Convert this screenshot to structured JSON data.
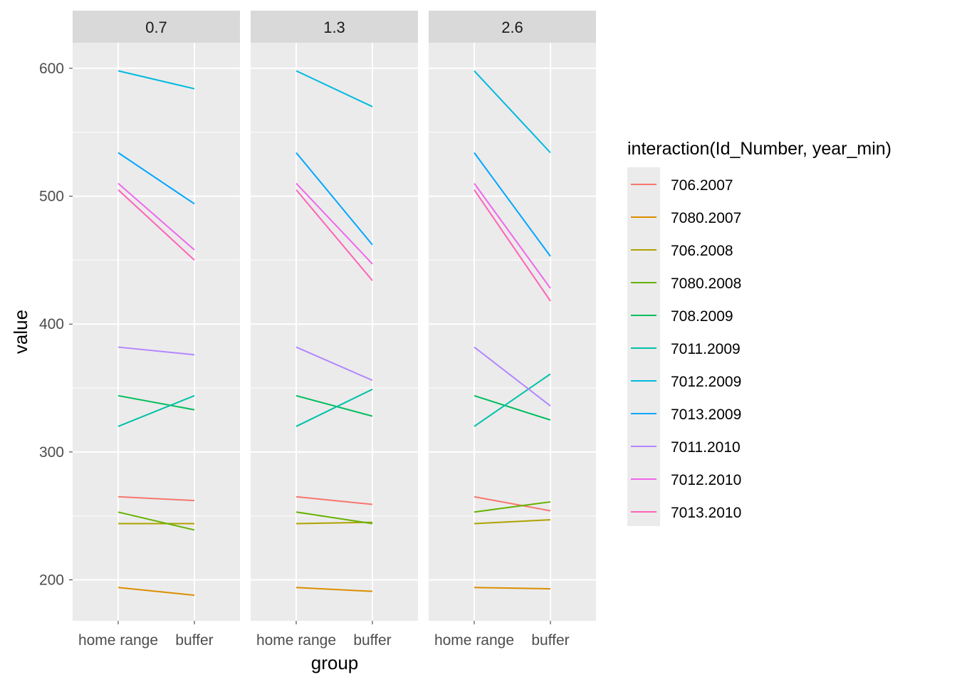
{
  "chart_data": {
    "type": "line",
    "facet_variable_values": [
      "0.7",
      "1.3",
      "2.6"
    ],
    "categories": [
      "home range",
      "buffer"
    ],
    "xlabel": "group",
    "ylabel": "value",
    "ylim": [
      168,
      620
    ],
    "y_ticks": [
      200,
      300,
      400,
      500,
      600
    ],
    "grid": true,
    "legend": {
      "title": "interaction(Id_Number, year_min)",
      "position": "right"
    },
    "series": [
      {
        "name": "706.2007",
        "color": "#F8766D",
        "facets": [
          [
            265,
            262
          ],
          [
            265,
            259
          ],
          [
            265,
            254
          ]
        ]
      },
      {
        "name": "7080.2007",
        "color": "#DB8E00",
        "facets": [
          [
            194,
            188
          ],
          [
            194,
            191
          ],
          [
            194,
            193
          ]
        ]
      },
      {
        "name": "706.2008",
        "color": "#AEA200",
        "facets": [
          [
            244,
            244
          ],
          [
            244,
            245
          ],
          [
            244,
            247
          ]
        ]
      },
      {
        "name": "7080.2008",
        "color": "#64B200",
        "facets": [
          [
            253,
            239
          ],
          [
            253,
            244
          ],
          [
            253,
            261
          ]
        ]
      },
      {
        "name": "708.2009",
        "color": "#00BD5C",
        "facets": [
          [
            344,
            333
          ],
          [
            344,
            328
          ],
          [
            344,
            325
          ]
        ]
      },
      {
        "name": "7011.2009",
        "color": "#00C1A7",
        "facets": [
          [
            320,
            344
          ],
          [
            320,
            349
          ],
          [
            320,
            361
          ]
        ]
      },
      {
        "name": "7012.2009",
        "color": "#00BADE",
        "facets": [
          [
            598,
            584
          ],
          [
            598,
            570
          ],
          [
            598,
            534
          ]
        ]
      },
      {
        "name": "7013.2009",
        "color": "#00A6FF",
        "facets": [
          [
            534,
            494
          ],
          [
            534,
            462
          ],
          [
            534,
            453
          ]
        ]
      },
      {
        "name": "7011.2010",
        "color": "#B385FF",
        "facets": [
          [
            382,
            376
          ],
          [
            382,
            356
          ],
          [
            382,
            336
          ]
        ]
      },
      {
        "name": "7012.2010",
        "color": "#EF67EB",
        "facets": [
          [
            510,
            458
          ],
          [
            510,
            447
          ],
          [
            510,
            428
          ]
        ]
      },
      {
        "name": "7013.2010",
        "color": "#FF63B6",
        "facets": [
          [
            505,
            450
          ],
          [
            505,
            434
          ],
          [
            505,
            418
          ]
        ]
      }
    ]
  }
}
